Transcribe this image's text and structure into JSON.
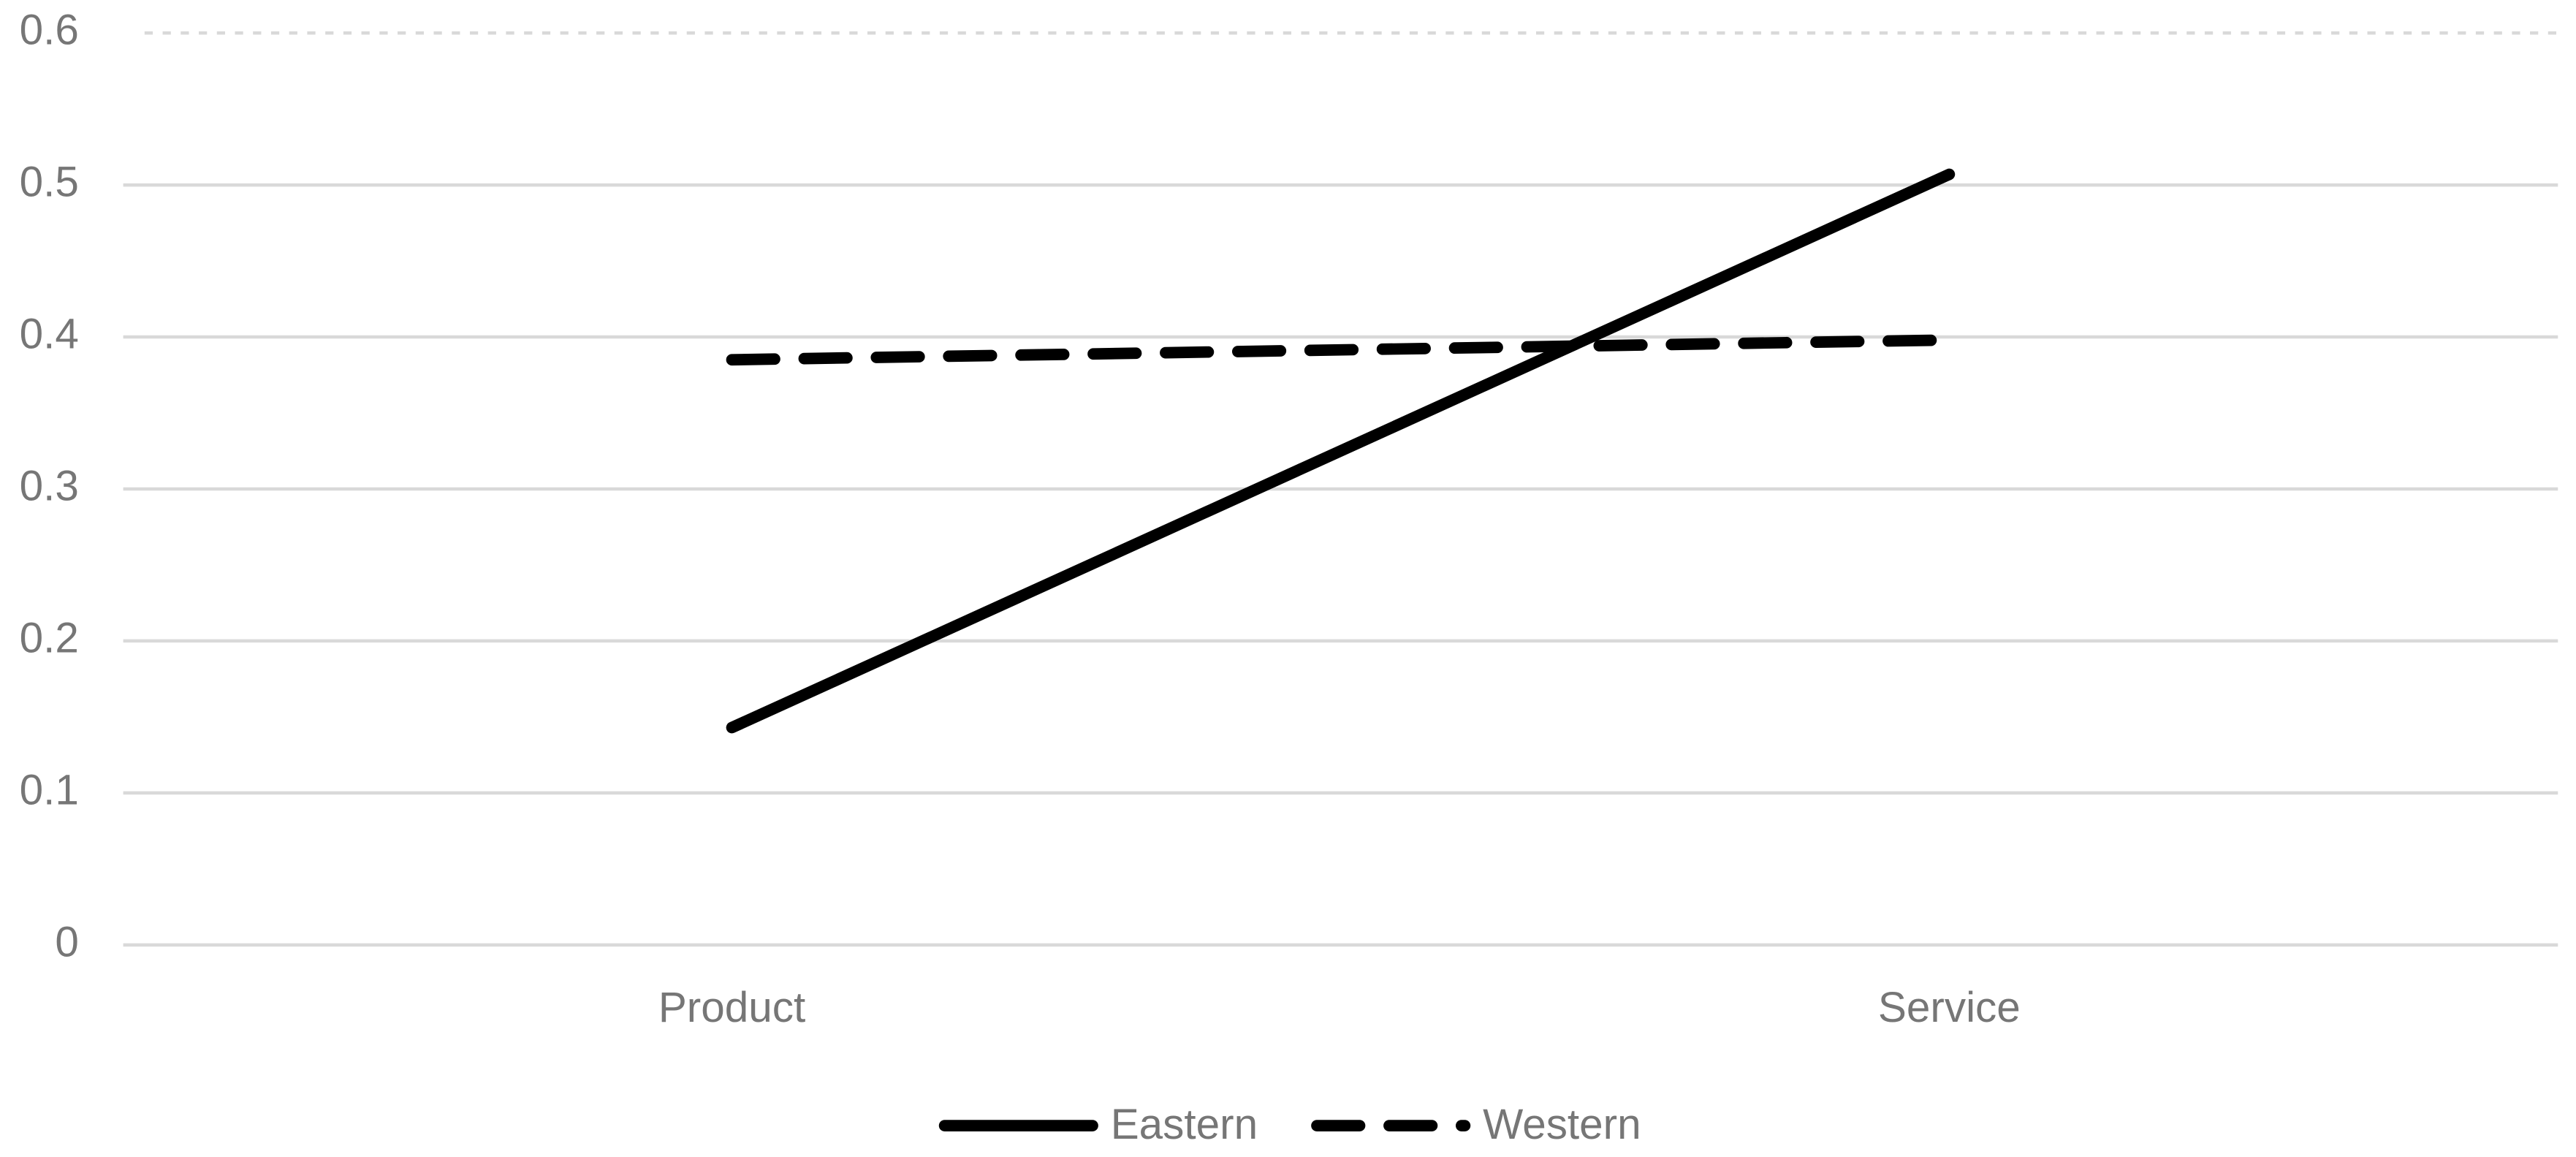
{
  "chart_data": {
    "type": "line",
    "categories": [
      "Product",
      "Service"
    ],
    "series": [
      {
        "name": "Eastern",
        "color": "#000000",
        "linestyle": "solid",
        "values": [
          0.143,
          0.507
        ]
      },
      {
        "name": "Western",
        "color": "#000000",
        "linestyle": "dashed",
        "values": [
          0.385,
          0.398
        ]
      }
    ],
    "ylim": [
      0,
      0.6
    ],
    "yticks": [
      0,
      0.1,
      0.2,
      0.3,
      0.4,
      0.5,
      0.6
    ],
    "grid": true,
    "legend": "bottom"
  }
}
